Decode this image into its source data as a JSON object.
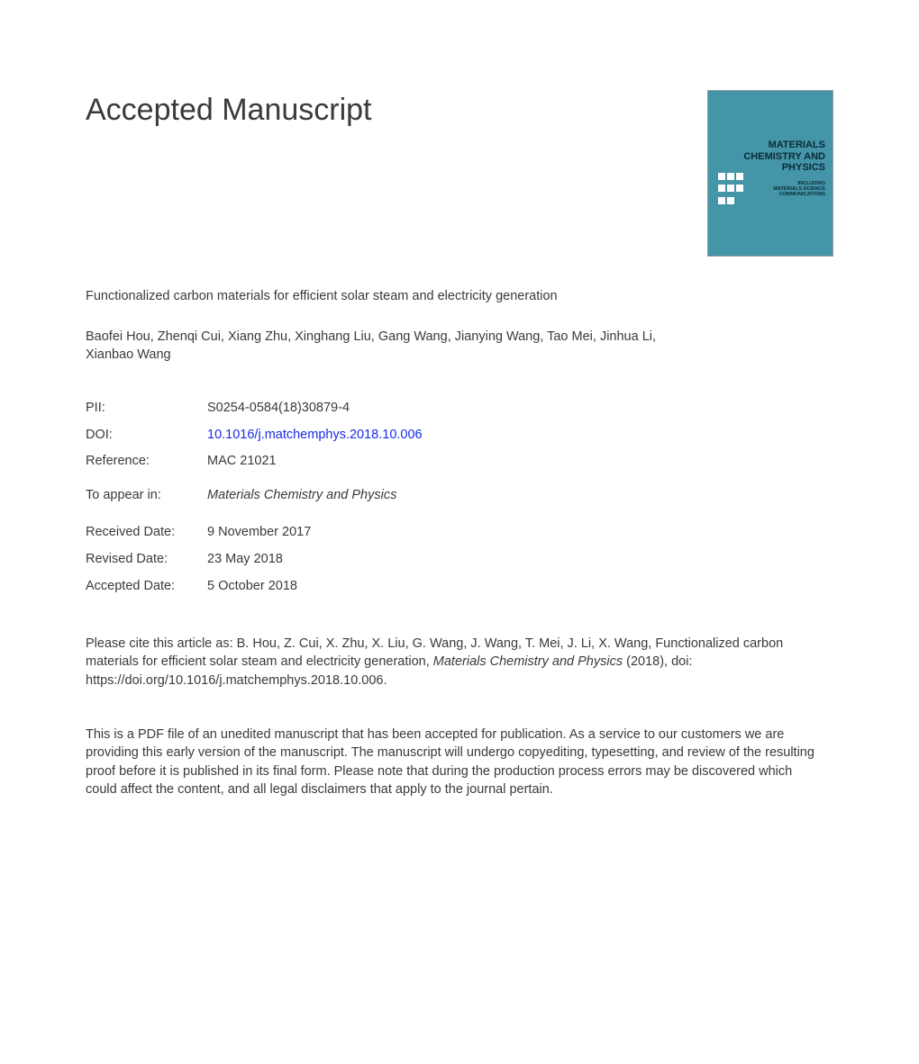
{
  "header": {
    "accepted_title": "Accepted Manuscript"
  },
  "journal_cover": {
    "title_line1": "MATERIALS",
    "title_line2": "CHEMISTRY AND",
    "title_line3": "PHYSICS",
    "subtitle": "INCLUDING MATERIALS SCIENCE COMMUNICATIONS",
    "background_color": "#4495a8",
    "title_color": "#0b2a35"
  },
  "article": {
    "title": "Functionalized carbon materials for efficient solar steam and electricity generation",
    "authors": "Baofei Hou, Zhenqi Cui, Xiang Zhu, Xinghang Liu, Gang Wang, Jianying Wang, Tao Mei, Jinhua Li, Xianbao Wang"
  },
  "metadata": {
    "pii_label": "PII:",
    "pii_value": "S0254-0584(18)30879-4",
    "doi_label": "DOI:",
    "doi_value": "10.1016/j.matchemphys.2018.10.006",
    "reference_label": "Reference:",
    "reference_value": "MAC 21021",
    "appear_label": "To appear in:",
    "appear_value": "Materials Chemistry and Physics"
  },
  "dates": {
    "received_label": "Received Date:",
    "received_value": "9 November 2017",
    "revised_label": "Revised Date:",
    "revised_value": "23 May 2018",
    "accepted_label": "Accepted Date:",
    "accepted_value": "5 October 2018"
  },
  "citation": {
    "prefix": "Please cite this article as: B. Hou, Z. Cui, X. Zhu, X. Liu, G. Wang, J. Wang, T. Mei, J. Li, X. Wang, Functionalized carbon materials for efficient solar steam and electricity generation, ",
    "journal": "Materials Chemistry and Physics",
    "suffix": " (2018), doi: https://doi.org/10.1016/j.matchemphys.2018.10.006."
  },
  "disclaimer": {
    "text": "This is a PDF file of an unedited manuscript that has been accepted for publication. As a service to our customers we are providing this early version of the manuscript. The manuscript will undergo copyediting, typesetting, and review of the resulting proof before it is published in its final form. Please note that during the production process errors may be discovered which could affect the content, and all legal disclaimers that apply to the journal pertain."
  },
  "colors": {
    "text": "#3a3a3a",
    "link": "#1a2be8",
    "background": "#ffffff"
  },
  "typography": {
    "body_fontsize": 14.5,
    "title_fontsize": 34,
    "font_family": "Arial"
  }
}
